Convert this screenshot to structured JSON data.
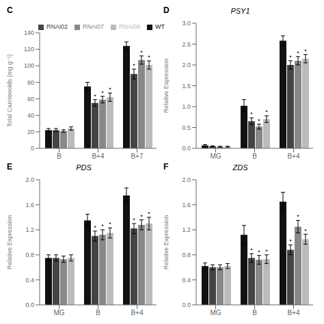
{
  "chart_data": [
    {
      "type": "bar",
      "annotations": [
        "C"
      ],
      "ylabel": "Total Carotenoids (mg g⁻¹)",
      "legend": "upper left",
      "grid": false,
      "categories": [
        "B",
        "B+4",
        "B+7"
      ],
      "series": [
        {
          "name": "WT",
          "color": "#111111",
          "values": [
            22,
            75,
            124
          ],
          "errors": [
            2,
            5,
            5
          ]
        },
        {
          "name": "RNAi02",
          "color": "#444444",
          "values": [
            22,
            55,
            90
          ],
          "errors": [
            2,
            4,
            6
          ],
          "annotations": [
            null,
            "*",
            "*"
          ]
        },
        {
          "name": "RNAi07",
          "color": "#888888",
          "values": [
            21,
            59,
            107
          ],
          "errors": [
            1.5,
            4,
            5
          ],
          "annotations": [
            null,
            "*",
            "*"
          ]
        },
        {
          "name": "RNAi08",
          "color": "#bbbbbb",
          "values": [
            24,
            62,
            101
          ],
          "errors": [
            2,
            5,
            5
          ],
          "annotations": [
            null,
            "*",
            "*"
          ]
        }
      ],
      "ylim": [
        0,
        140
      ],
      "yticks": [
        0,
        20,
        40,
        60,
        80,
        100,
        120,
        140
      ]
    },
    {
      "type": "bar",
      "annotations": [
        "D"
      ],
      "title": "PSY1",
      "ylabel": "Relative Expression",
      "grid": false,
      "categories": [
        "MG",
        "B",
        "B+4"
      ],
      "series": [
        {
          "name": "WT",
          "color": "#111111",
          "values": [
            0.07,
            1.02,
            2.58
          ],
          "errors": [
            0.02,
            0.15,
            0.12
          ]
        },
        {
          "name": "RNAi02",
          "color": "#444444",
          "values": [
            0.05,
            0.65,
            2.0
          ],
          "errors": [
            0.01,
            0.08,
            0.1
          ],
          "annotations": [
            null,
            "*",
            "*"
          ]
        },
        {
          "name": "RNAi07",
          "color": "#888888",
          "values": [
            0.04,
            0.52,
            2.1
          ],
          "errors": [
            0.01,
            0.06,
            0.1
          ],
          "annotations": [
            null,
            "*",
            "*"
          ]
        },
        {
          "name": "RNAi08",
          "color": "#bbbbbb",
          "values": [
            0.04,
            0.7,
            2.15
          ],
          "errors": [
            0.01,
            0.08,
            0.1
          ],
          "annotations": [
            null,
            "*",
            "*"
          ]
        }
      ],
      "ylim": [
        0,
        3.0
      ],
      "yticks": [
        {
          "value": 0,
          "label": "0.0"
        },
        0.5,
        {
          "value": 1,
          "label": "1.0"
        },
        1.5,
        {
          "value": 2,
          "label": "2.0"
        },
        2.5,
        {
          "value": 3,
          "label": "3.0"
        }
      ]
    },
    {
      "type": "bar",
      "annotations": [
        "E"
      ],
      "title": "PDS",
      "ylabel": "Relative Expression",
      "grid": false,
      "categories": [
        "MG",
        "B",
        "B+4"
      ],
      "series": [
        {
          "name": "WT",
          "color": "#111111",
          "values": [
            0.75,
            1.35,
            1.75
          ],
          "errors": [
            0.05,
            0.1,
            0.12
          ]
        },
        {
          "name": "RNAi02",
          "color": "#444444",
          "values": [
            0.75,
            1.1,
            1.22
          ],
          "errors": [
            0.05,
            0.08,
            0.08
          ],
          "annotations": [
            null,
            "*",
            "*"
          ]
        },
        {
          "name": "RNAi07",
          "color": "#888888",
          "values": [
            0.73,
            1.12,
            1.28
          ],
          "errors": [
            0.05,
            0.08,
            0.08
          ],
          "annotations": [
            null,
            "*",
            "*"
          ]
        },
        {
          "name": "RNAi08",
          "color": "#bbbbbb",
          "values": [
            0.75,
            1.15,
            1.3
          ],
          "errors": [
            0.05,
            0.08,
            0.1
          ],
          "annotations": [
            null,
            "*",
            "*"
          ]
        }
      ],
      "ylim": [
        0,
        2.0
      ],
      "yticks": [
        {
          "value": 0,
          "label": "0.0"
        },
        0.4,
        0.8,
        1.2,
        1.6,
        {
          "value": 2,
          "label": "2.0"
        }
      ]
    },
    {
      "type": "bar",
      "annotations": [
        "F"
      ],
      "title": "ZDS",
      "ylabel": "Relative Expression",
      "grid": false,
      "categories": [
        "MG",
        "B",
        "B+4"
      ],
      "series": [
        {
          "name": "WT",
          "color": "#111111",
          "values": [
            0.62,
            1.12,
            1.65
          ],
          "errors": [
            0.05,
            0.15,
            0.15
          ]
        },
        {
          "name": "RNAi02",
          "color": "#444444",
          "values": [
            0.6,
            0.75,
            0.88
          ],
          "errors": [
            0.04,
            0.07,
            0.08
          ],
          "annotations": [
            null,
            "*",
            "*"
          ]
        },
        {
          "name": "RNAi07",
          "color": "#888888",
          "values": [
            0.6,
            0.72,
            1.25
          ],
          "errors": [
            0.04,
            0.07,
            0.1
          ],
          "annotations": [
            null,
            "*",
            "*"
          ]
        },
        {
          "name": "RNAi08",
          "color": "#bbbbbb",
          "values": [
            0.62,
            0.73,
            1.05
          ],
          "errors": [
            0.04,
            0.07,
            0.08
          ],
          "annotations": [
            null,
            "*",
            "*"
          ]
        }
      ],
      "ylim": [
        0,
        2.0
      ],
      "yticks": [
        {
          "value": 0,
          "label": "0.0"
        },
        0.4,
        0.8,
        1.2,
        1.6,
        {
          "value": 2,
          "label": "2.0"
        }
      ]
    }
  ]
}
